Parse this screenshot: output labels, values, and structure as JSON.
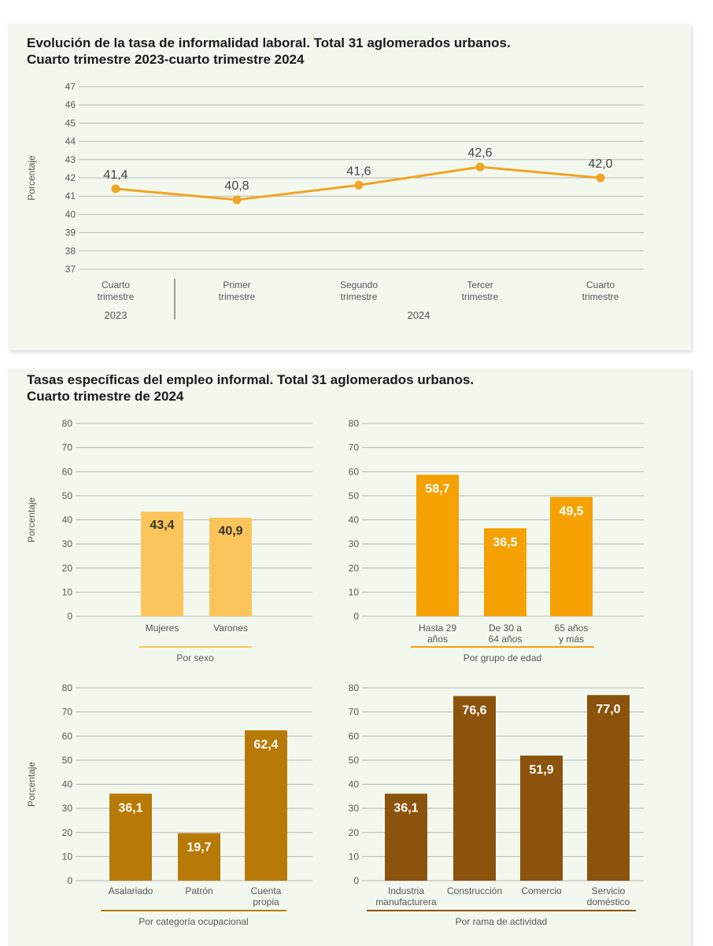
{
  "line_chart": {
    "title_line1": "Evolución de la tasa de informalidad laboral. Total 31 aglomerados urbanos.",
    "title_line2": "Cuarto trimestre 2023-cuarto trimestre 2024",
    "ylabel": "Porcentaje",
    "year_2023": "2023",
    "year_2024": "2024"
  },
  "bar_section": {
    "title_line1": "Tasas específicas del empleo informal. Total 31 aglomerados urbanos.",
    "title_line2": "Cuarto trimestre de 2024",
    "ylabel": "Porcentaje"
  },
  "colors": {
    "line": "#f0a526",
    "sexo": "#fcc55b",
    "edad": "#f4a101",
    "categoria": "#b87a06",
    "rama": "#8b530c",
    "axis_text": "#555555",
    "value_text": "#333333",
    "grid": "#b8b8b8"
  },
  "chart_data": [
    {
      "type": "line",
      "title": "Evolución de la tasa de informalidad laboral. Total 31 aglomerados urbanos. Cuarto trimestre 2023-cuarto trimestre 2024",
      "ylabel": "Porcentaje",
      "ylim": [
        37,
        47
      ],
      "yticks": [
        37,
        38,
        39,
        40,
        41,
        42,
        43,
        44,
        45,
        46,
        47
      ],
      "categories": [
        [
          "Cuarto",
          "trimestre"
        ],
        [
          "Primer",
          "trimestre"
        ],
        [
          "Segundo",
          "trimestre"
        ],
        [
          "Tercer",
          "trimestre"
        ],
        [
          "Cuarto",
          "trimestre"
        ]
      ],
      "groups": [
        {
          "label": "2023",
          "span": [
            0,
            0
          ]
        },
        {
          "label": "2024",
          "span": [
            1,
            4
          ]
        }
      ],
      "values": [
        41.4,
        40.8,
        41.6,
        42.6,
        42.0
      ],
      "value_labels": [
        "41,4",
        "40,8",
        "41,6",
        "42,6",
        "42,0"
      ],
      "grid": true
    },
    {
      "type": "bar",
      "group_label": "Por sexo",
      "ylabel": "Porcentaje",
      "ylim": [
        0,
        80
      ],
      "yticks": [
        0,
        10,
        20,
        30,
        40,
        50,
        60,
        70,
        80
      ],
      "categories": [
        [
          "Mujeres"
        ],
        [
          "Varones"
        ]
      ],
      "values": [
        43.4,
        40.9
      ],
      "value_labels": [
        "43,4",
        "40,9"
      ],
      "grid": true
    },
    {
      "type": "bar",
      "group_label": "Por grupo de edad",
      "ylim": [
        0,
        80
      ],
      "yticks": [
        0,
        10,
        20,
        30,
        40,
        50,
        60,
        70,
        80
      ],
      "categories": [
        [
          "Hasta 29",
          "años"
        ],
        [
          "De 30 a",
          "64 años"
        ],
        [
          "65 años",
          "y más"
        ]
      ],
      "values": [
        58.7,
        36.5,
        49.5
      ],
      "value_labels": [
        "58,7",
        "36,5",
        "49,5"
      ],
      "grid": true
    },
    {
      "type": "bar",
      "group_label": "Por categoría ocupacional",
      "ylabel": "Porcentaje",
      "ylim": [
        0,
        80
      ],
      "yticks": [
        0,
        10,
        20,
        30,
        40,
        50,
        60,
        70,
        80
      ],
      "categories": [
        [
          "Asalariado"
        ],
        [
          "Patrón"
        ],
        [
          "Cuenta",
          "propia"
        ]
      ],
      "values": [
        36.1,
        19.7,
        62.4
      ],
      "value_labels": [
        "36,1",
        "19,7",
        "62,4"
      ],
      "grid": true
    },
    {
      "type": "bar",
      "group_label": "Por rama de actividad",
      "ylim": [
        0,
        80
      ],
      "yticks": [
        0,
        10,
        20,
        30,
        40,
        50,
        60,
        70,
        80
      ],
      "categories": [
        [
          "Industria",
          "manufacturera"
        ],
        [
          "Construcción"
        ],
        [
          "Comercio"
        ],
        [
          "Servicio",
          "doméstico"
        ]
      ],
      "values": [
        36.1,
        76.6,
        51.9,
        77.0
      ],
      "value_labels": [
        "36,1",
        "76,6",
        "51,9",
        "77,0"
      ],
      "grid": true
    }
  ]
}
